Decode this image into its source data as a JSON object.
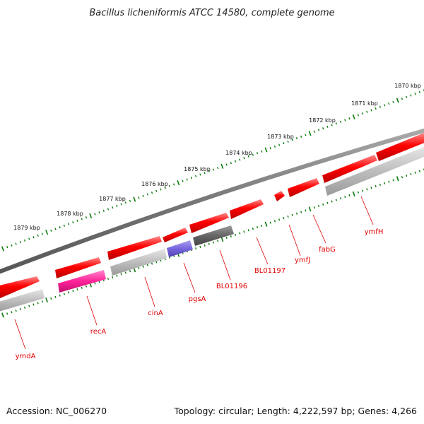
{
  "title": "Bacillus licheniformis ATCC 14580, complete genome",
  "footer": {
    "accession": "Accession: NC_006270",
    "summary": "Topology: circular; Length: 4,222,597 bp; Genes: 4,266"
  },
  "scale_labels": [
    "1870 kbp",
    "1871 kbp",
    "1872 kbp",
    "1873 kbp",
    "1874 kbp",
    "1875 kbp",
    "1876 kbp",
    "1877 kbp",
    "1878 kbp",
    "1879 kbp"
  ],
  "gene_labels": [
    "ymfH",
    "fabG",
    "ymfJ",
    "BL01197",
    "BL01196",
    "pgsA",
    "cinA",
    "recA",
    "ymdA"
  ],
  "colors": {
    "backbone": "#777777",
    "gene": "#ff0000",
    "gene_dark": "#c00000",
    "rna_grey": "#bbbbbb",
    "hypothetical": "#666666",
    "pgsA": "#7766dd",
    "recA": "#ff2299",
    "ticks": "#0a7a0a",
    "label": "#e00000"
  }
}
